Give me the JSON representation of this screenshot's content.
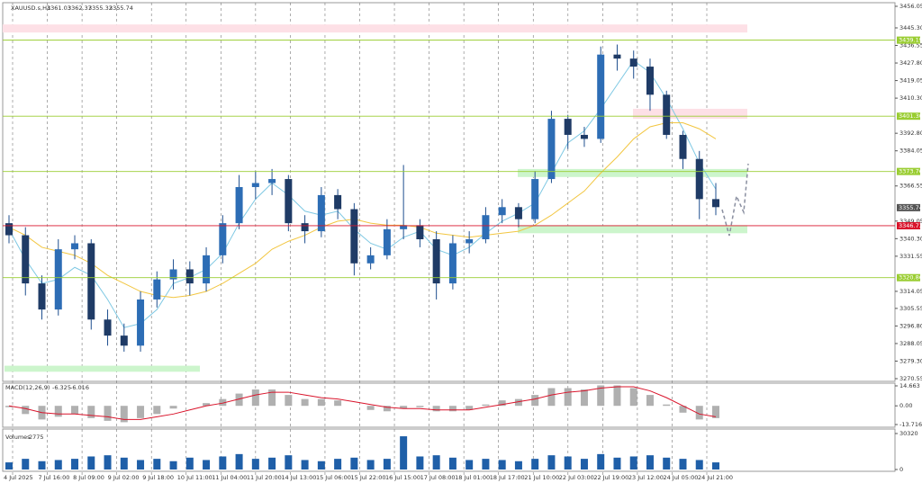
{
  "chart_data": [
    {
      "type": "candlestick",
      "symbol": "XAUUSD.s,H1",
      "ohlc": [
        3361.03,
        3362.37,
        3355.32,
        3355.74
      ],
      "x_labels": [
        "4 Jul 2025",
        "7 Jul 16:00",
        "8 Jul 09:00",
        "9 Jul 02:00",
        "9 Jul 18:00",
        "10 Jul 11:00",
        "11 Jul 04:00",
        "11 Jul 20:00",
        "14 Jul 13:00",
        "15 Jul 06:00",
        "15 Jul 22:00",
        "16 Jul 15:00",
        "17 Jul 08:00",
        "18 Jul 01:00",
        "18 Jul 17:00",
        "21 Jul 10:00",
        "22 Jul 03:00",
        "22 Jul 19:00",
        "23 Jul 12:00",
        "24 Jul 05:00",
        "24 Jul 21:00"
      ],
      "open": [
        3348,
        3342,
        3318,
        3305,
        3335,
        3338,
        3300,
        3292,
        3287,
        3310,
        3320,
        3325,
        3318,
        3332,
        3348,
        3366,
        3368,
        3370,
        3348,
        3344,
        3362,
        3355,
        3328,
        3332,
        3345,
        3347,
        3340,
        3318,
        3338,
        3340,
        3352,
        3356,
        3350,
        3370,
        3400,
        3392,
        3390,
        3432,
        3430,
        3426,
        3412,
        3392,
        3380,
        3360
      ],
      "high": [
        3352,
        3346,
        3322,
        3340,
        3342,
        3340,
        3305,
        3298,
        3314,
        3324,
        3330,
        3329,
        3336,
        3352,
        3372,
        3374,
        3375,
        3372,
        3352,
        3366,
        3365,
        3358,
        3336,
        3350,
        3377,
        3350,
        3344,
        3342,
        3344,
        3356,
        3360,
        3358,
        3374,
        3404,
        3402,
        3396,
        3436,
        3437,
        3434,
        3430,
        3414,
        3394,
        3384,
        3368
      ],
      "low": [
        3338,
        3312,
        3300,
        3302,
        3330,
        3295,
        3287,
        3284,
        3284,
        3306,
        3315,
        3312,
        3314,
        3328,
        3345,
        3360,
        3362,
        3344,
        3338,
        3341,
        3350,
        3322,
        3325,
        3330,
        3340,
        3336,
        3310,
        3315,
        3333,
        3338,
        3348,
        3346,
        3348,
        3368,
        3385,
        3386,
        3388,
        3424,
        3420,
        3404,
        3390,
        3375,
        3350,
        3352
      ],
      "close": [
        3342,
        3318,
        3305,
        3335,
        3338,
        3300,
        3292,
        3287,
        3310,
        3320,
        3325,
        3318,
        3332,
        3348,
        3366,
        3368,
        3370,
        3348,
        3344,
        3362,
        3355,
        3328,
        3332,
        3345,
        3347,
        3340,
        3318,
        3338,
        3340,
        3352,
        3356,
        3350,
        3370,
        3400,
        3392,
        3390,
        3432,
        3430,
        3426,
        3412,
        3392,
        3380,
        3360,
        3356
      ],
      "series": [
        {
          "color": "#7ec8e3",
          "values": [
            3345,
            3330,
            3318,
            3320,
            3326,
            3322,
            3310,
            3296,
            3298,
            3305,
            3318,
            3321,
            3325,
            3333,
            3348,
            3360,
            3368,
            3362,
            3354,
            3352,
            3354,
            3345,
            3338,
            3335,
            3341,
            3344,
            3335,
            3332,
            3336,
            3343,
            3349,
            3353,
            3358,
            3373,
            3388,
            3394,
            3405,
            3417,
            3429,
            3423,
            3410,
            3395,
            3378,
            3365
          ]
        },
        {
          "color": "#f2c641",
          "values": [
            3346,
            3342,
            3336,
            3334,
            3332,
            3328,
            3322,
            3318,
            3314,
            3312,
            3311,
            3312,
            3314,
            3318,
            3323,
            3328,
            3335,
            3339,
            3342,
            3346,
            3349,
            3350,
            3348,
            3347,
            3347,
            3346,
            3343,
            3342,
            3341,
            3342,
            3343,
            3344,
            3347,
            3352,
            3358,
            3364,
            3373,
            3381,
            3390,
            3396,
            3398,
            3398,
            3395,
            3390
          ]
        }
      ],
      "ylim": [
        3270.55,
        3456.05
      ],
      "yticks": [
        3456.05,
        {
          "value": 3445.3,
          "label": "3445.30"
        },
        3436.55,
        {
          "value": 3427.8,
          "label": "3427.80"
        },
        3419.05,
        {
          "value": 3410.3,
          "label": "3410.30"
        },
        {
          "value": 3392.8,
          "label": "3392.80"
        },
        3384.05,
        3366.55,
        3349.05,
        {
          "value": 3340.3,
          "label": "3340.30"
        },
        3331.55,
        3314.05,
        3305.55,
        {
          "value": 3296.8,
          "label": "3296.80"
        },
        3288.05,
        {
          "value": 3279.3,
          "label": "3279.30"
        },
        3270.55
      ],
      "levels": [
        {
          "value": 3439.19,
          "color": "#9acd32"
        },
        {
          "value": {
            "value": 3401.3,
            "label": "3401.30"
          },
          "color": "#9acd32"
        },
        {
          "value": 3373.76,
          "color": "#9acd32"
        },
        {
          "value": 3346.73,
          "color": "#d9142b"
        },
        {
          "value": 3320.86,
          "color": "#9acd32"
        }
      ],
      "current_price": 3355.74,
      "zones": [
        {
          "range": [
            3443,
            3447
          ],
          "color": "#fde0e6"
        },
        {
          "range": [
            3400,
            3405
          ],
          "color": "#fde0e6"
        },
        {
          "range": [
            3371,
            3375
          ],
          "color": "#ccf5cc"
        },
        {
          "range": [
            3343,
            3347
          ],
          "color": "#ccf5cc"
        },
        {
          "range": [
            3274,
            3277
          ],
          "color": "#ccf5cc"
        }
      ]
    },
    {
      "type": "macd",
      "name": "MACD(12,26,9)",
      "readout": [
        -6.325,
        -6.016
      ],
      "values": [
        -1,
        -6,
        -10,
        -8,
        -6,
        -9,
        -11,
        -12,
        -9,
        -6,
        -2,
        0,
        2,
        5,
        9,
        12,
        12,
        8,
        5,
        5,
        4,
        0,
        -3,
        -4,
        -2,
        -1,
        -4,
        -4,
        -3,
        1,
        4,
        5,
        8,
        13,
        13,
        12,
        15,
        15,
        13,
        8,
        1,
        -5,
        -10,
        -9
      ],
      "signal": [
        0,
        -2,
        -5,
        -6,
        -6,
        -7,
        -8,
        -10,
        -10,
        -8,
        -6,
        -3,
        0,
        2,
        5,
        8,
        10,
        10,
        8,
        6,
        5,
        3,
        1,
        -1,
        -2,
        -2,
        -3,
        -3,
        -3,
        -1,
        1,
        3,
        5,
        8,
        10,
        11,
        13,
        14,
        14,
        11,
        6,
        0,
        -6,
        -8
      ],
      "ylim": [
        -13.716,
        14.663
      ],
      "yticks": [
        14.663,
        {
          "value": 0,
          "label": "0.00"
        },
        -13.716
      ]
    },
    {
      "type": "volume",
      "name": "Volumes",
      "readout": 2775,
      "color": "#1f5fa8",
      "values": [
        6000,
        9000,
        7000,
        8000,
        9000,
        11000,
        12000,
        10000,
        8000,
        9000,
        7000,
        10000,
        8000,
        11000,
        13000,
        9000,
        10000,
        12000,
        8000,
        7000,
        9000,
        10000,
        8000,
        9000,
        28000,
        11000,
        12000,
        10000,
        8000,
        9000,
        8000,
        7000,
        9000,
        12000,
        11000,
        9000,
        13000,
        10000,
        11000,
        12000,
        10000,
        9000,
        8000,
        6000
      ],
      "ylim": [
        0,
        30320
      ],
      "yticks": [
        30320,
        0
      ]
    }
  ]
}
